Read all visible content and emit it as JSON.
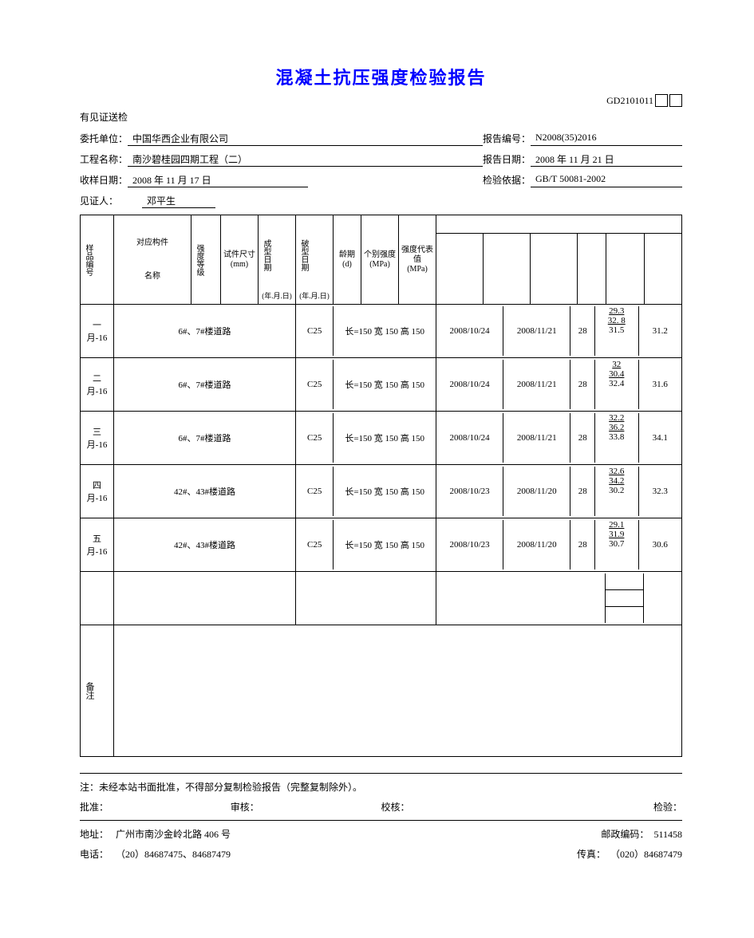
{
  "title": "混凝土抗压强度检验报告",
  "form_code": "GD2101011",
  "subline": "有见证送检",
  "info": {
    "client_label": "委托单位：",
    "client": "中国华西企业有限公司",
    "report_no_label": "报告编号：",
    "report_no": "N2008(35)2016",
    "project_label": "工程名称：",
    "project": "南沙碧桂园四期工程（二）",
    "report_date_label": "报告日期：",
    "report_date": "2008 年 11 月 21 日",
    "sample_date_label": "收样日期：",
    "sample_date": "2008 年 11 月 17 日",
    "basis_label": "检验依据：",
    "basis": "GB/T 50081-2002",
    "witness_label": "见证人：",
    "witness": "邓平生"
  },
  "headers": {
    "h1": "样品编号",
    "h2a": "对应构件",
    "h2b": "名称",
    "h3": "强度等级",
    "h4a": "试件尺寸",
    "h4b": "(mm)",
    "h5a": "成型日期",
    "h5b": "(年.月.日)",
    "h6a": "破型日期",
    "h6b": "(年.月.日)",
    "h7a": "龄期",
    "h7b": "(d)",
    "h8a": "个别强度",
    "h8b": "(MPa)",
    "h9a": "强度代表值",
    "h9b": "(MPa)"
  },
  "rows": [
    {
      "no": "一月-16",
      "part": "6#、7#楼道路",
      "grade": "C25",
      "size": "长=150 宽 150 高 150",
      "cast": "2008/10/24",
      "break": "2008/11/21",
      "age": "28",
      "v": [
        "29.3",
        "32. 8",
        "31.5"
      ],
      "rep": "31.2"
    },
    {
      "no": "二月-16",
      "part": "6#、7#楼道路",
      "grade": "C25",
      "size": "长=150 宽 150 高 150",
      "cast": "2008/10/24",
      "break": "2008/11/21",
      "age": "28",
      "v": [
        "32",
        "30.4",
        "32.4"
      ],
      "rep": "31.6"
    },
    {
      "no": "三月-16",
      "part": "6#、7#楼道路",
      "grade": "C25",
      "size": "长=150 宽 150 高 150",
      "cast": "2008/10/24",
      "break": "2008/11/21",
      "age": "28",
      "v": [
        "32.2",
        "36.2",
        "33.8"
      ],
      "rep": "34.1"
    },
    {
      "no": "四月-16",
      "part": "42#、43#楼道路",
      "grade": "C25",
      "size": "长=150 宽 150 高 150",
      "cast": "2008/10/23",
      "break": "2008/11/20",
      "age": "28",
      "v": [
        "32.6",
        "34.2",
        "30.2"
      ],
      "rep": "32.3"
    },
    {
      "no": "五月-16",
      "part": "42#、43#楼道路",
      "grade": "C25",
      "size": "长=150 宽 150 高 150",
      "cast": "2008/10/23",
      "break": "2008/11/20",
      "age": "28",
      "v": [
        "29.1",
        "31.9",
        "30.7"
      ],
      "rep": "30.6"
    }
  ],
  "remark_label": "备注",
  "footer": {
    "note": "注：未经本站书面批准，不得部分复制检验报告（完整复制除外）。",
    "approve": "批准：",
    "review": "审核：",
    "check": "校核：",
    "inspect": "检验：",
    "addr_label": "地址：",
    "addr": "广州市南沙金岭北路 406 号",
    "zip_label": "邮政编码：",
    "zip": "511458",
    "tel_label": "电话：",
    "tel": "（20）84687475、84687479",
    "fax_label": "传真：",
    "fax": "（020）84687479"
  }
}
